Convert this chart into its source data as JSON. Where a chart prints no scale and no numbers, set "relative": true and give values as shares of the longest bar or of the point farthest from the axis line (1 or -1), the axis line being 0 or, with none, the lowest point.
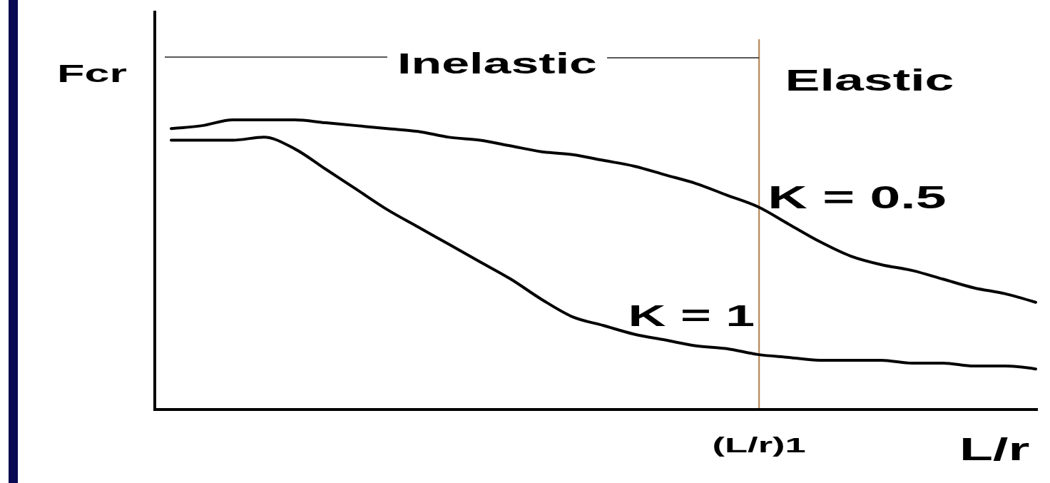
{
  "chart_data": {
    "type": "line",
    "relative": true,
    "xlabel": "L/r",
    "ylabel": "Fcr",
    "categories": [
      null,
      null,
      null,
      null,
      null,
      null,
      null,
      null,
      null,
      null,
      null,
      null,
      null,
      null,
      null,
      null,
      null,
      null,
      null,
      null,
      null,
      null,
      null,
      null,
      null,
      null,
      null,
      null,
      null
    ],
    "series": [
      {
        "name": "K = 0.5",
        "color": "#000000",
        "values": [
          0.97,
          0.98,
          1,
          1,
          1,
          0.99,
          0.98,
          0.97,
          0.96,
          0.94,
          0.93,
          0.91,
          0.89,
          0.88,
          0.86,
          0.84,
          0.81,
          0.78,
          0.74,
          0.7,
          0.64,
          0.58,
          0.53,
          0.5,
          0.48,
          0.45,
          0.42,
          0.4,
          0.37
        ]
      },
      {
        "name": "K = 1",
        "color": "#000000",
        "values": [
          0.93,
          0.93,
          0.93,
          0.94,
          0.9,
          0.83,
          0.76,
          0.69,
          0.63,
          0.57,
          0.51,
          0.45,
          0.38,
          0.32,
          0.29,
          0.26,
          0.24,
          0.22,
          0.21,
          0.19,
          0.18,
          0.17,
          0.17,
          0.17,
          0.16,
          0.16,
          0.15,
          0.15,
          0.14
        ]
      }
    ],
    "annotations": [
      "Inelastic",
      "Elastic",
      "(L/r)1"
    ]
  }
}
